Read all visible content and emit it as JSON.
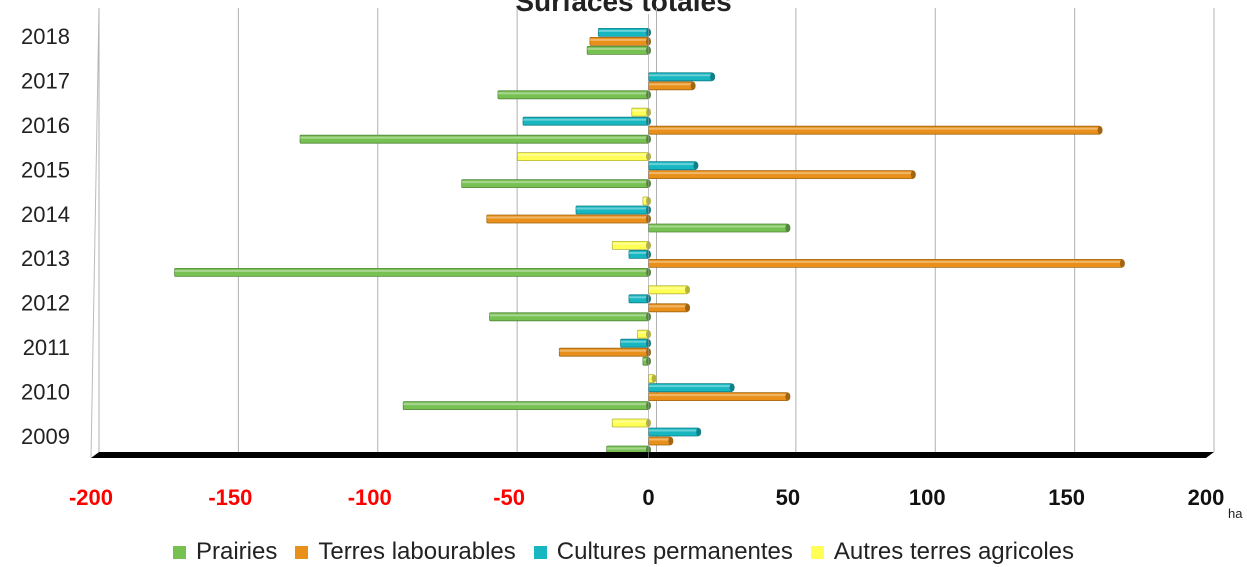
{
  "chart_data": {
    "type": "bar",
    "orientation": "horizontal",
    "title": "Surfaces totales",
    "unit_label": "ha",
    "categories": [
      "2009",
      "2010",
      "2011",
      "2012",
      "2013",
      "2014",
      "2015",
      "2016",
      "2017",
      "2018"
    ],
    "series": [
      {
        "name": "Prairies",
        "color": "#77c153",
        "values": [
          -15,
          -88,
          -2,
          -57,
          -170,
          50,
          -67,
          -125,
          -54,
          -22
        ]
      },
      {
        "name": "Terres labourables",
        "color": "#e8901a",
        "values": [
          8,
          50,
          -32,
          14,
          170,
          -58,
          95,
          162,
          16,
          -21
        ]
      },
      {
        "name": "Cultures permanentes",
        "color": "#17b7c2",
        "values": [
          18,
          30,
          -10,
          -7,
          -7,
          -26,
          17,
          -45,
          23,
          -18
        ]
      },
      {
        "name": "Autres terres agricoles",
        "color": "#ffff55",
        "values": [
          -13,
          2,
          -4,
          14,
          -13,
          -2,
          -47,
          -6,
          0,
          0
        ]
      }
    ],
    "xlim": [
      -200,
      200
    ],
    "x_ticks": [
      -200,
      -150,
      -100,
      -50,
      0,
      50,
      100,
      150,
      200
    ],
    "negative_tick_color": "#ff0000",
    "grid": true,
    "legend_position": "bottom"
  }
}
